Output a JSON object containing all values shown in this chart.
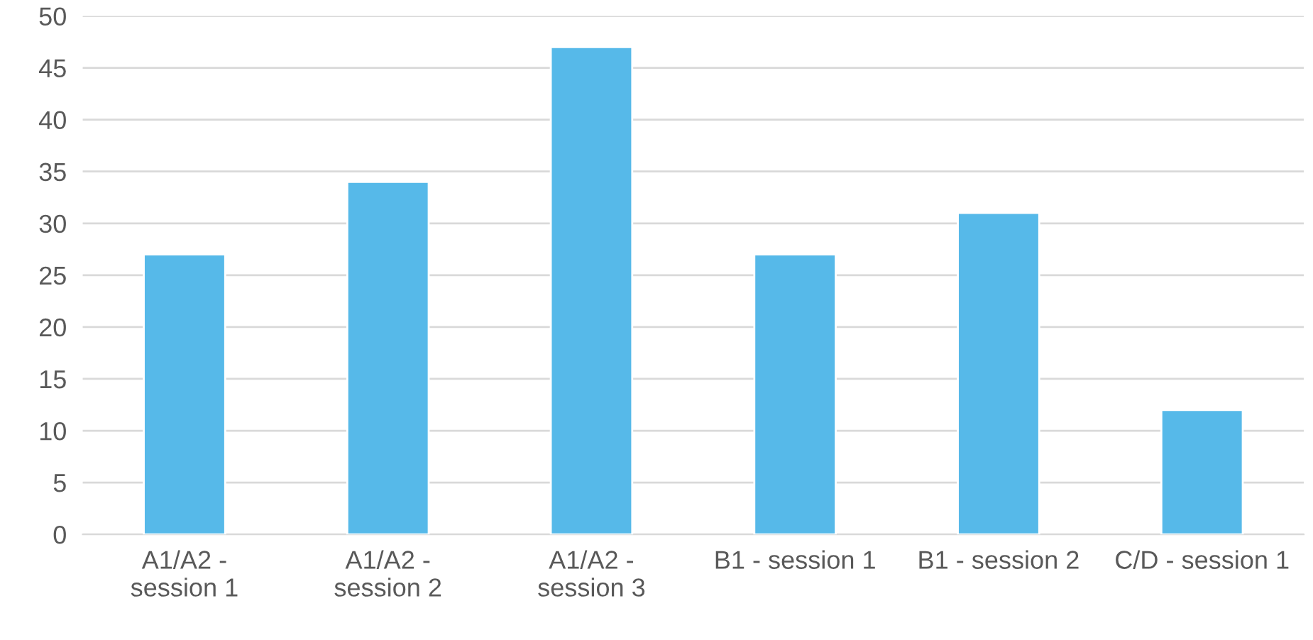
{
  "chart_data": {
    "type": "bar",
    "categories": [
      "A1/A2 -\nsession 1",
      "A1/A2 -\nsession 2",
      "A1/A2 -\nsession 3",
      "B1 - session 1",
      "B1 - session 2",
      "C/D - session 1"
    ],
    "values": [
      27,
      34,
      47,
      27,
      31,
      12
    ],
    "color": "#56b9e9",
    "ylim": [
      0,
      50
    ],
    "yticks": [
      0,
      5,
      10,
      15,
      20,
      25,
      30,
      35,
      40,
      45,
      50
    ],
    "grid": "y"
  }
}
